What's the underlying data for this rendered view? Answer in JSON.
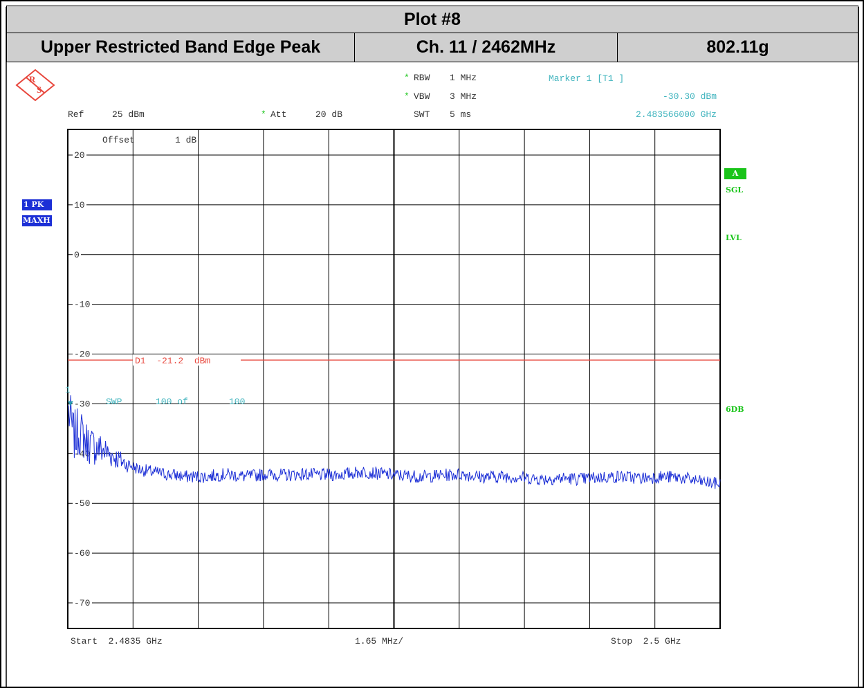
{
  "header": {
    "title": "Plot #8",
    "test_name": "Upper Restricted Band Edge Peak",
    "channel": "Ch. 11 / 2462MHz",
    "mode": "802.11g"
  },
  "settings": {
    "rbw_label": "RBW",
    "rbw_value": "1 MHz",
    "vbw_label": "VBW",
    "vbw_value": "3 MHz",
    "swt_label": "SWT",
    "swt_value": "5 ms",
    "ref_label": "Ref",
    "ref_value": "25 dBm",
    "att_label": "Att",
    "att_value": "20 dB",
    "star": "*",
    "offset_label": "Offset",
    "offset_value": "1 dB"
  },
  "marker": {
    "title": "Marker 1 [T1 ]",
    "level": "-30.30 dBm",
    "frequency": "2.483566000 GHz",
    "id": "1"
  },
  "trace_info": {
    "badge": "1 PK",
    "mode": "MAXH"
  },
  "side_labels": {
    "a": "A",
    "sgl": "SGL",
    "lvl": "LVL",
    "sixdb": "6DB"
  },
  "display_line": {
    "label": "D1  -21.2  dBm"
  },
  "sweep": {
    "swp": "SWP",
    "count": "100 of",
    "total": "100"
  },
  "footer": {
    "start": "Start  2.4835 GHz",
    "span": "1.65 MHz/",
    "stop": "Stop  2.5 GHz"
  },
  "colors": {
    "trace": "#1c2fd6",
    "display_line": "#e8473d",
    "marker_text": "#40b4be",
    "grid": "#000000",
    "header_bg": "#cfcfcf",
    "sidebar_green": "#19c419",
    "badge_blue": "#1c2fd6"
  },
  "chart_data": {
    "type": "line",
    "xlabel": "",
    "ylabel": "",
    "xlim": [
      2.4835,
      2.5
    ],
    "ylim": [
      -75,
      25
    ],
    "y_ticks": [
      20,
      10,
      0,
      -10,
      -20,
      -30,
      -40,
      -50,
      -60,
      -70
    ],
    "display_line_y": -21.2,
    "marker": {
      "x": 2.483566,
      "y": -30.3
    },
    "series": [
      {
        "name": "",
        "x": [
          2.4835,
          2.48365,
          2.4838,
          2.48395,
          2.4841,
          2.48425,
          2.4844,
          2.4846,
          2.4848,
          2.485,
          2.4853,
          2.4856,
          2.486,
          2.4865,
          2.487,
          2.4875,
          2.488,
          2.4885,
          2.489,
          2.4895,
          2.49,
          2.4905,
          2.491,
          2.4915,
          2.492,
          2.4925,
          2.493,
          2.4935,
          2.494,
          2.4945,
          2.495,
          2.4955,
          2.496,
          2.4965,
          2.497,
          2.4975,
          2.498,
          2.4985,
          2.499,
          2.4995,
          2.5
        ],
        "y": [
          -30.3,
          -36,
          -35,
          -37,
          -38,
          -38.5,
          -39,
          -40,
          -41,
          -42,
          -43,
          -43.5,
          -44,
          -44.5,
          -44.5,
          -44,
          -44.5,
          -44,
          -44.2,
          -44,
          -44.2,
          -44,
          -43.5,
          -44,
          -44.3,
          -44.5,
          -44.2,
          -44,
          -44.6,
          -44.4,
          -44.7,
          -45,
          -44.8,
          -45,
          -44.6,
          -44.5,
          -44.8,
          -44.5,
          -44.7,
          -45.5,
          -46
        ]
      }
    ]
  }
}
